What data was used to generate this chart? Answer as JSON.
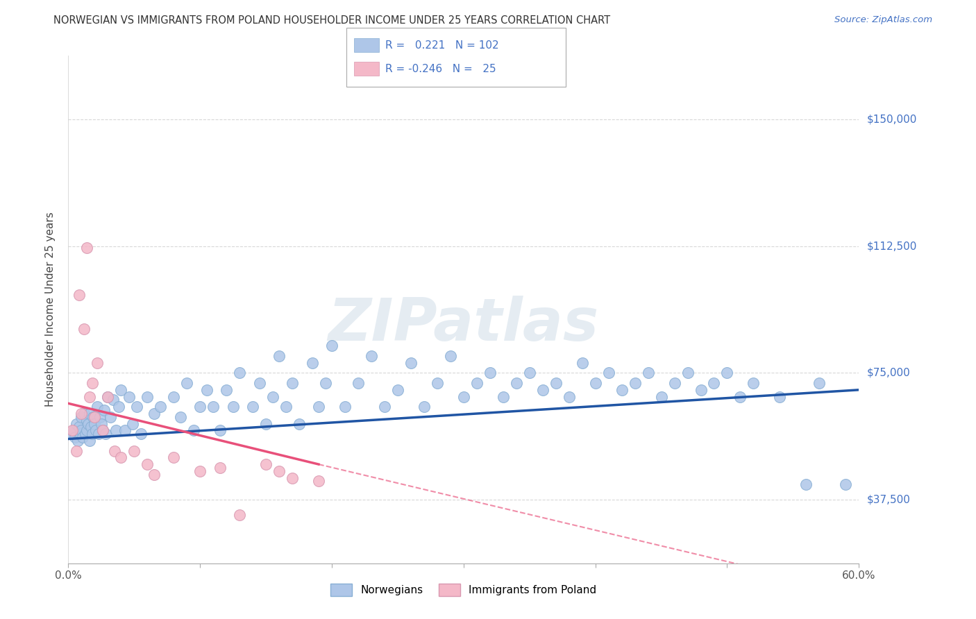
{
  "title": "NORWEGIAN VS IMMIGRANTS FROM POLAND HOUSEHOLDER INCOME UNDER 25 YEARS CORRELATION CHART",
  "source": "Source: ZipAtlas.com",
  "ylabel": "Householder Income Under 25 years",
  "xlim": [
    0.0,
    0.6
  ],
  "ylim": [
    18750,
    168750
  ],
  "yticks": [
    37500,
    75000,
    112500,
    150000
  ],
  "ytick_labels": [
    "$37,500",
    "$75,000",
    "$112,500",
    "$150,000"
  ],
  "xticks": [
    0.0,
    0.1,
    0.2,
    0.3,
    0.4,
    0.5,
    0.6
  ],
  "xtick_labels": [
    "0.0%",
    "",
    "",
    "",
    "",
    "",
    "60.0%"
  ],
  "norwegian_R": 0.221,
  "norwegian_N": 102,
  "poland_R": -0.246,
  "poland_N": 25,
  "background_color": "#ffffff",
  "grid_color": "#d8d8d8",
  "norwegian_color": "#aec6e8",
  "norwegian_line_color": "#2055a4",
  "poland_color": "#f4b8c8",
  "poland_line_color": "#e8507a",
  "watermark": "ZIPatlas",
  "norwegian_x": [
    0.002,
    0.004,
    0.005,
    0.006,
    0.007,
    0.008,
    0.009,
    0.01,
    0.01,
    0.011,
    0.012,
    0.013,
    0.014,
    0.014,
    0.015,
    0.016,
    0.016,
    0.017,
    0.018,
    0.019,
    0.02,
    0.021,
    0.022,
    0.023,
    0.024,
    0.025,
    0.026,
    0.027,
    0.028,
    0.03,
    0.032,
    0.034,
    0.036,
    0.038,
    0.04,
    0.043,
    0.046,
    0.049,
    0.052,
    0.055,
    0.06,
    0.065,
    0.07,
    0.08,
    0.085,
    0.09,
    0.095,
    0.1,
    0.105,
    0.11,
    0.115,
    0.12,
    0.125,
    0.13,
    0.14,
    0.145,
    0.15,
    0.155,
    0.16,
    0.165,
    0.17,
    0.175,
    0.185,
    0.19,
    0.195,
    0.2,
    0.21,
    0.22,
    0.23,
    0.24,
    0.25,
    0.26,
    0.27,
    0.28,
    0.29,
    0.3,
    0.31,
    0.32,
    0.33,
    0.34,
    0.35,
    0.36,
    0.37,
    0.38,
    0.39,
    0.4,
    0.41,
    0.42,
    0.43,
    0.44,
    0.45,
    0.46,
    0.47,
    0.48,
    0.49,
    0.5,
    0.51,
    0.52,
    0.54,
    0.56,
    0.57,
    0.59
  ],
  "norwegian_y": [
    57000,
    58000,
    56000,
    60000,
    55000,
    59000,
    57000,
    62000,
    58000,
    56000,
    63000,
    57000,
    61000,
    58000,
    60000,
    55000,
    63000,
    59000,
    57000,
    62000,
    60000,
    58000,
    65000,
    57000,
    62000,
    60000,
    58000,
    64000,
    57000,
    68000,
    62000,
    67000,
    58000,
    65000,
    70000,
    58000,
    68000,
    60000,
    65000,
    57000,
    68000,
    63000,
    65000,
    68000,
    62000,
    72000,
    58000,
    65000,
    70000,
    65000,
    58000,
    70000,
    65000,
    75000,
    65000,
    72000,
    60000,
    68000,
    80000,
    65000,
    72000,
    60000,
    78000,
    65000,
    72000,
    83000,
    65000,
    72000,
    80000,
    65000,
    70000,
    78000,
    65000,
    72000,
    80000,
    68000,
    72000,
    75000,
    68000,
    72000,
    75000,
    70000,
    72000,
    68000,
    78000,
    72000,
    75000,
    70000,
    72000,
    75000,
    68000,
    72000,
    75000,
    70000,
    72000,
    75000,
    68000,
    72000,
    68000,
    42000,
    72000,
    42000
  ],
  "poland_x": [
    0.003,
    0.006,
    0.008,
    0.01,
    0.012,
    0.014,
    0.016,
    0.018,
    0.02,
    0.022,
    0.026,
    0.03,
    0.035,
    0.04,
    0.05,
    0.06,
    0.065,
    0.08,
    0.1,
    0.115,
    0.13,
    0.15,
    0.16,
    0.17,
    0.19
  ],
  "poland_y": [
    58000,
    52000,
    98000,
    63000,
    88000,
    112000,
    68000,
    72000,
    62000,
    78000,
    58000,
    68000,
    52000,
    50000,
    52000,
    48000,
    45000,
    50000,
    46000,
    47000,
    33000,
    48000,
    46000,
    44000,
    43000
  ]
}
